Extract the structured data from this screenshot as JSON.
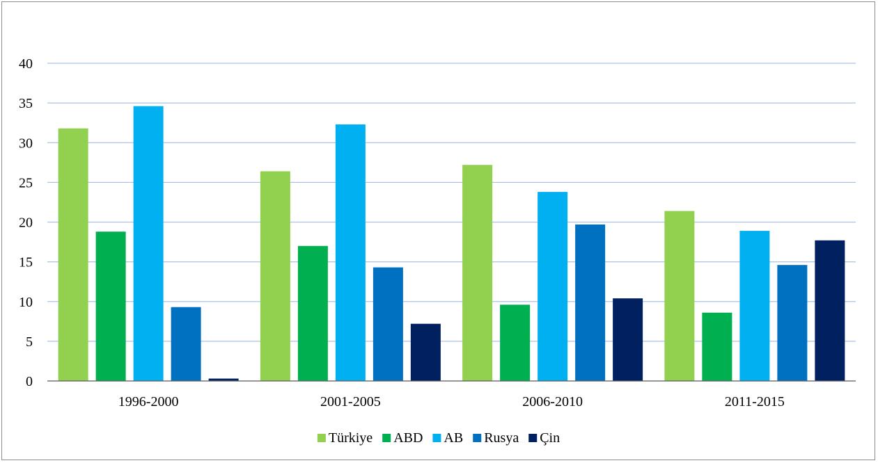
{
  "chart_data": {
    "type": "bar",
    "title": "",
    "xlabel": "",
    "ylabel": "",
    "categories": [
      "1996-2000",
      "2001-2005",
      "2006-2010",
      "2011-2015"
    ],
    "series": [
      {
        "name": "Türkiye",
        "color": "#92d050",
        "values": [
          31.8,
          26.4,
          27.2,
          21.4
        ]
      },
      {
        "name": "ABD",
        "color": "#00b050",
        "values": [
          18.8,
          17.0,
          9.6,
          8.6
        ]
      },
      {
        "name": "AB",
        "color": "#00b0f0",
        "values": [
          34.6,
          32.3,
          23.8,
          18.9
        ]
      },
      {
        "name": "Rusya",
        "color": "#0070c0",
        "values": [
          9.3,
          14.3,
          19.7,
          14.6
        ]
      },
      {
        "name": "Çin",
        "color": "#002060",
        "values": [
          0.3,
          7.2,
          10.4,
          17.7
        ]
      }
    ],
    "ylim": [
      0,
      40
    ],
    "yticks": [
      0,
      5,
      10,
      15,
      20,
      25,
      30,
      35,
      40
    ],
    "grid": true,
    "legend_position": "bottom"
  }
}
